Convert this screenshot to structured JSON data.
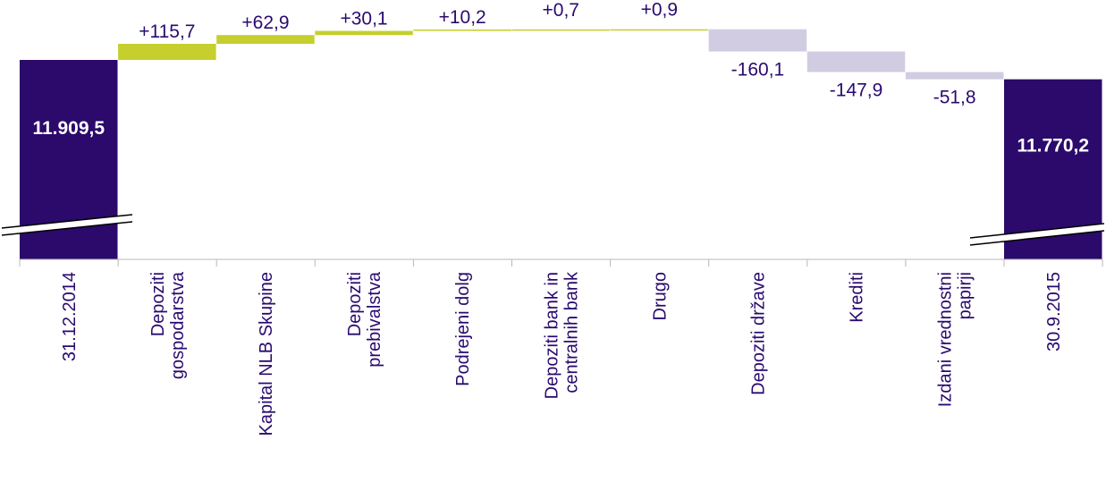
{
  "chart_data": {
    "type": "bar",
    "subtype": "waterfall",
    "categories": [
      "31.12.2014",
      "Depoziti gospodarstva",
      "Kapital NLB Skupine",
      "Depoziti prebivalstva",
      "Podrejeni dolg",
      "Depoziti bank in centralnih bank",
      "Drugo",
      "Depoziti države",
      "Krediti",
      "Izdani vrednostni papirji",
      "30.9.2015"
    ],
    "category_lines": [
      [
        "31.12.2014"
      ],
      [
        "Depoziti",
        "gospodarstva"
      ],
      [
        "Kapital NLB Skupine"
      ],
      [
        "Depoziti",
        "prebivalstva"
      ],
      [
        "Podrejeni dolg"
      ],
      [
        "Depoziti bank in",
        "centralnih bank"
      ],
      [
        "Drugo"
      ],
      [
        "Depoziti države"
      ],
      [
        "Krediti"
      ],
      [
        "Izdani vrednostni",
        "papirji"
      ],
      [
        "30.9.2015"
      ]
    ],
    "values": [
      11909.5,
      115.7,
      62.9,
      30.1,
      10.2,
      0.7,
      0.9,
      -160.1,
      -147.9,
      -51.8,
      11770.2
    ],
    "labels": [
      "11.909,5",
      "+115,7",
      "+62,9",
      "+30,1",
      "+10,2",
      "+0,7",
      "+0,9",
      "-160,1",
      "-147,9",
      "-51,8",
      "11.770,2"
    ],
    "bar_roles": [
      "total",
      "increase",
      "increase",
      "increase",
      "increase",
      "increase",
      "increase",
      "decrease",
      "decrease",
      "decrease",
      "total"
    ],
    "axis_break": true,
    "colors": {
      "total": "#2b0a6b",
      "increase": "#c5cf2e",
      "decrease": "#d2cce2",
      "axis": "#b8b8b8",
      "label_text": "#2a0a6f",
      "total_label_text": "#ffffff"
    }
  }
}
